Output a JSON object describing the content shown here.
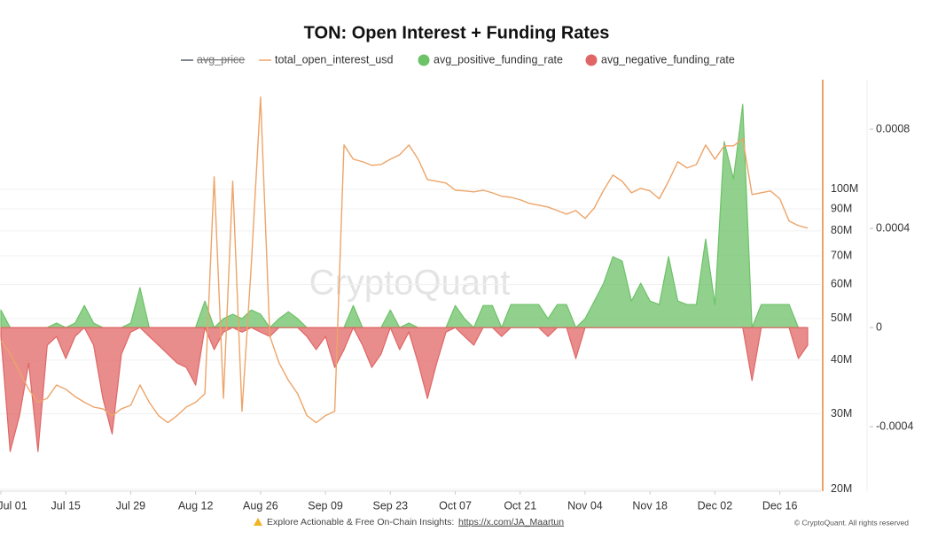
{
  "chart_data": {
    "type": "line",
    "title": "TON: Open Interest + Funding Rates",
    "watermark": "CryptoQuant",
    "footer": "Explore Actionable & Free On-Chain Insights:",
    "footer_link": "https://x.com/JA_Maartun",
    "copyright": "© CryptoQuant. All rights reserved",
    "x": [
      "Jul 01",
      "Jul 03",
      "Jul 05",
      "Jul 07",
      "Jul 09",
      "Jul 11",
      "Jul 13",
      "Jul 15",
      "Jul 17",
      "Jul 19",
      "Jul 21",
      "Jul 23",
      "Jul 25",
      "Jul 27",
      "Jul 29",
      "Jul 31",
      "Aug 02",
      "Aug 04",
      "Aug 06",
      "Aug 08",
      "Aug 10",
      "Aug 12",
      "Aug 14",
      "Aug 16",
      "Aug 18",
      "Aug 20",
      "Aug 22",
      "Aug 24",
      "Aug 26",
      "Aug 28",
      "Aug 30",
      "Sep 01",
      "Sep 03",
      "Sep 05",
      "Sep 07",
      "Sep 09",
      "Sep 11",
      "Sep 13",
      "Sep 15",
      "Sep 17",
      "Sep 19",
      "Sep 21",
      "Sep 23",
      "Sep 25",
      "Sep 27",
      "Sep 29",
      "Oct 01",
      "Oct 03",
      "Oct 05",
      "Oct 07",
      "Oct 09",
      "Oct 11",
      "Oct 13",
      "Oct 15",
      "Oct 17",
      "Oct 19",
      "Oct 21",
      "Oct 23",
      "Oct 25",
      "Oct 27",
      "Oct 29",
      "Oct 31",
      "Nov 02",
      "Nov 04",
      "Nov 06",
      "Nov 08",
      "Nov 10",
      "Nov 12",
      "Nov 14",
      "Nov 16",
      "Nov 18",
      "Nov 20",
      "Nov 22",
      "Nov 24",
      "Nov 26",
      "Nov 28",
      "Nov 30",
      "Dec 02",
      "Dec 04",
      "Dec 06",
      "Dec 08",
      "Dec 10",
      "Dec 12",
      "Dec 14",
      "Dec 16",
      "Dec 18",
      "Dec 20",
      "Dec 22"
    ],
    "xticks": [
      "Jul 01",
      "Jul 15",
      "Jul 29",
      "Aug 12",
      "Aug 26",
      "Sep 09",
      "Sep 23",
      "Oct 07",
      "Oct 21",
      "Nov 04",
      "Nov 18",
      "Dec 02",
      "Dec 16"
    ],
    "yscale": "log",
    "ylim": [
      19800000,
      180000000
    ],
    "yticks": [
      {
        "value": 20000000,
        "label": "20M"
      },
      {
        "value": 30000000,
        "label": "30M"
      },
      {
        "value": 40000000,
        "label": "40M"
      },
      {
        "value": 50000000,
        "label": "50M"
      },
      {
        "value": 60000000,
        "label": "60M"
      },
      {
        "value": 70000000,
        "label": "70M"
      },
      {
        "value": 80000000,
        "label": "80M"
      },
      {
        "value": 90000000,
        "label": "90M"
      },
      {
        "value": 100000000,
        "label": "100M"
      }
    ],
    "y2lim": [
      -0.00066,
      0.001
    ],
    "y2ticks": [
      -0.0004,
      0,
      0.0004,
      0.0008
    ],
    "grid": true,
    "series": [
      {
        "name": "avg_price",
        "color": "#555d6b",
        "hidden": true,
        "kind": "line"
      },
      {
        "name": "total_open_interest_usd",
        "color": "#eda468",
        "kind": "line",
        "values": [
          44400000,
          41400000,
          37600000,
          34200000,
          31900000,
          32600000,
          35000000,
          34200000,
          32900000,
          31900000,
          31100000,
          30800000,
          29700000,
          30800000,
          31400000,
          35000000,
          31900000,
          29700000,
          28600000,
          29700000,
          31100000,
          31900000,
          33400000,
          106900000,
          32600000,
          104400000,
          30400000,
          66500000,
          163900000,
          45500000,
          39400000,
          35900000,
          33400000,
          29700000,
          28600000,
          29700000,
          30400000,
          126800000,
          117500000,
          115900000,
          113700000,
          114200000,
          117500000,
          120300000,
          126800000,
          117500000,
          105300000,
          104400000,
          103400000,
          99500000,
          99100000,
          98600000,
          99500000,
          98100000,
          96300000,
          95800000,
          94500000,
          92700000,
          91800000,
          90900000,
          89200000,
          87500000,
          89200000,
          85500000,
          90500000,
          99500000,
          107900000,
          104400000,
          98100000,
          100500000,
          99100000,
          95000000,
          104400000,
          115900000,
          112100000,
          114200000,
          126800000,
          117500000,
          126200000,
          126200000,
          131100000,
          97200000,
          98100000,
          99100000,
          95000000,
          84300000,
          82300000,
          81200000
        ]
      },
      {
        "name": "avg_positive_funding_rate",
        "color": "#6cc267",
        "kind": "area",
        "axis": "y2",
        "values": [
          7.1e-05,
          0,
          0,
          0,
          0,
          0,
          1.8e-05,
          0,
          1.8e-05,
          8.9e-05,
          1.8e-05,
          0,
          0,
          0,
          1.8e-05,
          0.000161,
          0,
          0,
          0,
          0,
          0,
          0,
          0.000107,
          0,
          3.6e-05,
          5.4e-05,
          3.6e-05,
          7.1e-05,
          5.4e-05,
          0,
          3.6e-05,
          6.4e-05,
          3.6e-05,
          0,
          0,
          0,
          0,
          0,
          8.9e-05,
          0,
          0,
          0,
          7.1e-05,
          0,
          1.8e-05,
          0,
          0,
          0,
          0,
          8.9e-05,
          3.6e-05,
          0,
          8.9e-05,
          8.9e-05,
          0,
          9.3e-05,
          9.3e-05,
          9.3e-05,
          9.3e-05,
          3.6e-05,
          9.3e-05,
          9.3e-05,
          0,
          3.6e-05,
          0.000107,
          0.000179,
          0.000286,
          0.000268,
          0.000107,
          0.000179,
          0.000107,
          9.3e-05,
          0.000286,
          0.000107,
          9.3e-05,
          9.3e-05,
          0.000357,
          9.3e-05,
          0.00075,
          0.0006,
          0.0009,
          0,
          9.3e-05,
          9.3e-05,
          9.3e-05,
          9.3e-05,
          0,
          0
        ]
      },
      {
        "name": "avg_negative_funding_rate",
        "color": "#e06666",
        "kind": "area",
        "axis": "y2",
        "values": [
          -3.6e-05,
          -0.0005,
          -0.000357,
          -0.000143,
          -0.0005,
          -7.1e-05,
          -3.6e-05,
          -0.000125,
          -3.6e-05,
          0,
          -7.1e-05,
          -0.000286,
          -0.000429,
          -0.000107,
          -1.8e-05,
          0,
          -3.6e-05,
          -7.1e-05,
          -0.000107,
          -0.000143,
          -0.000161,
          -0.000232,
          0,
          -8.9e-05,
          -1.8e-05,
          0,
          -1.8e-05,
          0,
          -1.8e-05,
          -3.6e-05,
          0,
          0,
          0,
          -3.6e-05,
          -8.9e-05,
          -3.6e-05,
          -0.000161,
          -8.9e-05,
          0,
          -7.1e-05,
          -0.000161,
          -0.000107,
          0,
          -8.9e-05,
          -1.8e-05,
          -0.000143,
          -0.000286,
          -0.000143,
          -1.8e-05,
          0,
          -3.6e-05,
          -7.1e-05,
          0,
          0,
          -3.6e-05,
          0,
          0,
          0,
          0,
          -3.6e-05,
          0,
          0,
          -0.000125,
          0,
          0,
          0,
          0,
          0,
          0,
          0,
          0,
          0,
          0,
          0,
          0,
          0,
          0,
          0,
          0,
          0,
          0,
          -0.000214,
          0,
          0,
          0,
          0,
          -0.000125,
          -7.1e-05
        ]
      }
    ]
  }
}
